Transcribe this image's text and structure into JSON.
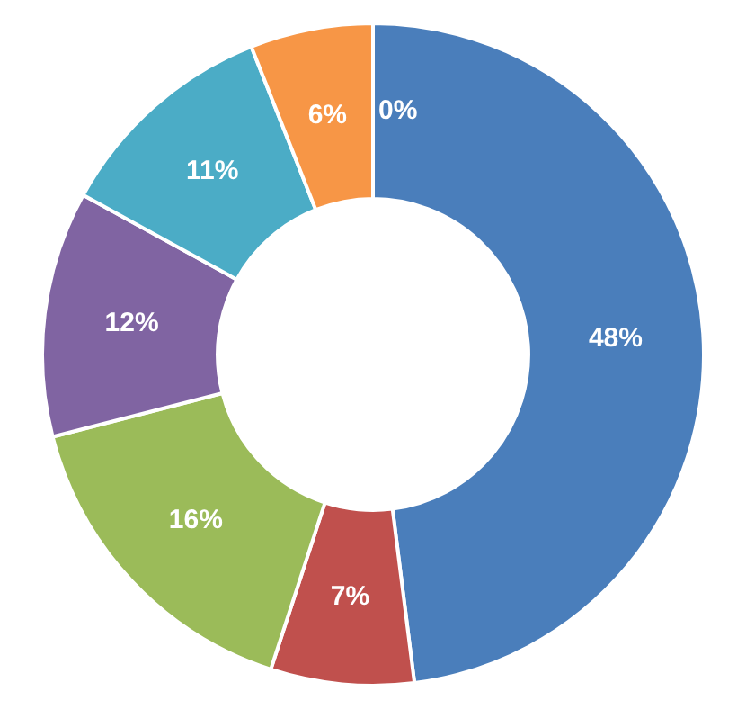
{
  "chart_data": {
    "type": "donut",
    "categories": [
      null,
      null,
      null,
      null,
      null,
      null,
      null
    ],
    "values": [
      48,
      7,
      16,
      12,
      11,
      6,
      0
    ],
    "colors": [
      "#4a7ebb",
      "#c0504d",
      "#9bbb59",
      "#8064a2",
      "#4bacc6",
      "#f79646",
      "#1f497d"
    ],
    "value_labels": [
      "48%",
      "7%",
      "16%",
      "12%",
      "11%",
      "6%",
      "0%"
    ],
    "legend": false
  }
}
